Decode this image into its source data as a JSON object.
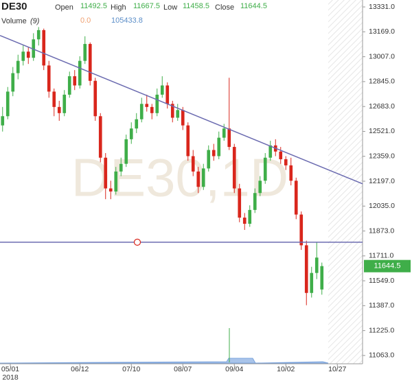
{
  "chart_data": {
    "type": "candlestick",
    "symbol": "DE30",
    "watermark": "DE30,1D",
    "ohlc_labels": [
      "Open",
      "High",
      "Low",
      "Close"
    ],
    "volume_label": "Volume",
    "volume_period": "(9)",
    "volume_readings": [
      {
        "value": 0,
        "label": "0.0"
      },
      {
        "value": 105433.8,
        "label": "105433.8"
      }
    ],
    "up_color": "#3fae49",
    "down_color": "#d9261c",
    "line_color": "#6b6bb0",
    "candles": [
      [
        12560,
        12680,
        12520,
        12620
      ],
      [
        12620,
        12810,
        12600,
        12780
      ],
      [
        12780,
        12940,
        12750,
        12900
      ],
      [
        12900,
        13020,
        12860,
        12980
      ],
      [
        12980,
        13080,
        12950,
        13040
      ],
      [
        13040,
        13070,
        12960,
        13000
      ],
      [
        13000,
        13160,
        12980,
        13120
      ],
      [
        13120,
        13200,
        13080,
        13180
      ],
      [
        13180,
        13190,
        12920,
        12950
      ],
      [
        12950,
        12980,
        12740,
        12780
      ],
      [
        12780,
        12800,
        12620,
        12680
      ],
      [
        12680,
        12720,
        12590,
        12640
      ],
      [
        12640,
        12790,
        12620,
        12760
      ],
      [
        12760,
        12910,
        12740,
        12880
      ],
      [
        12880,
        12920,
        12790,
        12820
      ],
      [
        12820,
        13010,
        12800,
        12980
      ],
      [
        12980,
        13140,
        12960,
        13090
      ],
      [
        13090,
        13100,
        12820,
        12850
      ],
      [
        12850,
        12870,
        12590,
        12620
      ],
      [
        12620,
        12640,
        12320,
        12350
      ],
      [
        12350,
        12380,
        12080,
        12150
      ],
      [
        12150,
        12200,
        12080,
        12130
      ],
      [
        12130,
        12290,
        12110,
        12260
      ],
      [
        12260,
        12350,
        12230,
        12310
      ],
      [
        12310,
        12500,
        12290,
        12470
      ],
      [
        12470,
        12580,
        12440,
        12540
      ],
      [
        12540,
        12640,
        12510,
        12600
      ],
      [
        12600,
        12740,
        12580,
        12700
      ],
      [
        12700,
        12760,
        12650,
        12680
      ],
      [
        12680,
        12700,
        12600,
        12640
      ],
      [
        12640,
        12800,
        12620,
        12760
      ],
      [
        12760,
        12880,
        12740,
        12820
      ],
      [
        12820,
        12840,
        12670,
        12700
      ],
      [
        12700,
        12720,
        12580,
        12610
      ],
      [
        12610,
        12700,
        12590,
        12660
      ],
      [
        12660,
        12680,
        12530,
        12560
      ],
      [
        12560,
        12580,
        12330,
        12360
      ],
      [
        12360,
        12400,
        12230,
        12260
      ],
      [
        12260,
        12290,
        12120,
        12160
      ],
      [
        12160,
        12310,
        12140,
        12280
      ],
      [
        12280,
        12430,
        12260,
        12400
      ],
      [
        12400,
        12440,
        12330,
        12360
      ],
      [
        12360,
        12520,
        12340,
        12480
      ],
      [
        12480,
        12570,
        12460,
        12540
      ],
      [
        12540,
        12870,
        12400,
        12420
      ],
      [
        12420,
        12440,
        12120,
        12150
      ],
      [
        12150,
        12180,
        11930,
        11960
      ],
      [
        11960,
        11990,
        11880,
        11920
      ],
      [
        11920,
        12040,
        11900,
        12010
      ],
      [
        12010,
        12150,
        11990,
        12120
      ],
      [
        12120,
        12230,
        12100,
        12200
      ],
      [
        12200,
        12380,
        12180,
        12350
      ],
      [
        12350,
        12460,
        12330,
        12430
      ],
      [
        12430,
        12470,
        12360,
        12390
      ],
      [
        12390,
        12420,
        12310,
        12340
      ],
      [
        12340,
        12360,
        12270,
        12300
      ],
      [
        12300,
        12350,
        12170,
        12200
      ],
      [
        12200,
        12220,
        11950,
        11980
      ],
      [
        11980,
        12000,
        11750,
        11780
      ],
      [
        11780,
        11810,
        11390,
        11470
      ],
      [
        11470,
        11640,
        11440,
        11600
      ],
      [
        11600,
        11800,
        11560,
        11700
      ],
      [
        11492.5,
        11667.5,
        11458.5,
        11644.5
      ]
    ],
    "lines": [
      {
        "x": [
          0,
          70.4
        ],
        "y": [
          13145,
          12180
        ]
      },
      {
        "x": [
          0,
          70.4
        ],
        "y": [
          11800,
          11800
        ]
      }
    ],
    "xlim": [
      0,
      70.4
    ],
    "xticks": [
      {
        "value": 2,
        "label": "05/01"
      },
      {
        "value": 15.5,
        "label": "06/12"
      },
      {
        "value": 25.5,
        "label": "07/10"
      },
      {
        "value": 35.5,
        "label": "08/07"
      },
      {
        "value": 45.5,
        "label": "09/04"
      },
      {
        "value": 55.5,
        "label": "10/02"
      },
      {
        "value": 65.5,
        "label": "10/27"
      }
    ],
    "year_label": "2018",
    "ylim": [
      11009,
      13376
    ],
    "yticks": [
      {
        "value": 13331,
        "label": "13331.0"
      },
      {
        "value": 13169,
        "label": "13169.0"
      },
      {
        "value": 13007,
        "label": "13007.0"
      },
      {
        "value": 12845,
        "label": "12845.0"
      },
      {
        "value": 12683,
        "label": "12683.0"
      },
      {
        "value": 12521,
        "label": "12521.0"
      },
      {
        "value": 12359,
        "label": "12359.0"
      },
      {
        "value": 12197,
        "label": "12197.0"
      },
      {
        "value": 12035,
        "label": "12035.0"
      },
      {
        "value": 11873,
        "label": "11873.0"
      },
      {
        "value": 11711,
        "label": "11711.0"
      },
      {
        "value": 11549,
        "label": "11549.0"
      },
      {
        "value": 11387,
        "label": "11387.0"
      },
      {
        "value": 11225,
        "label": "11225.0"
      },
      {
        "value": 11063,
        "label": "11063.0"
      }
    ]
  }
}
